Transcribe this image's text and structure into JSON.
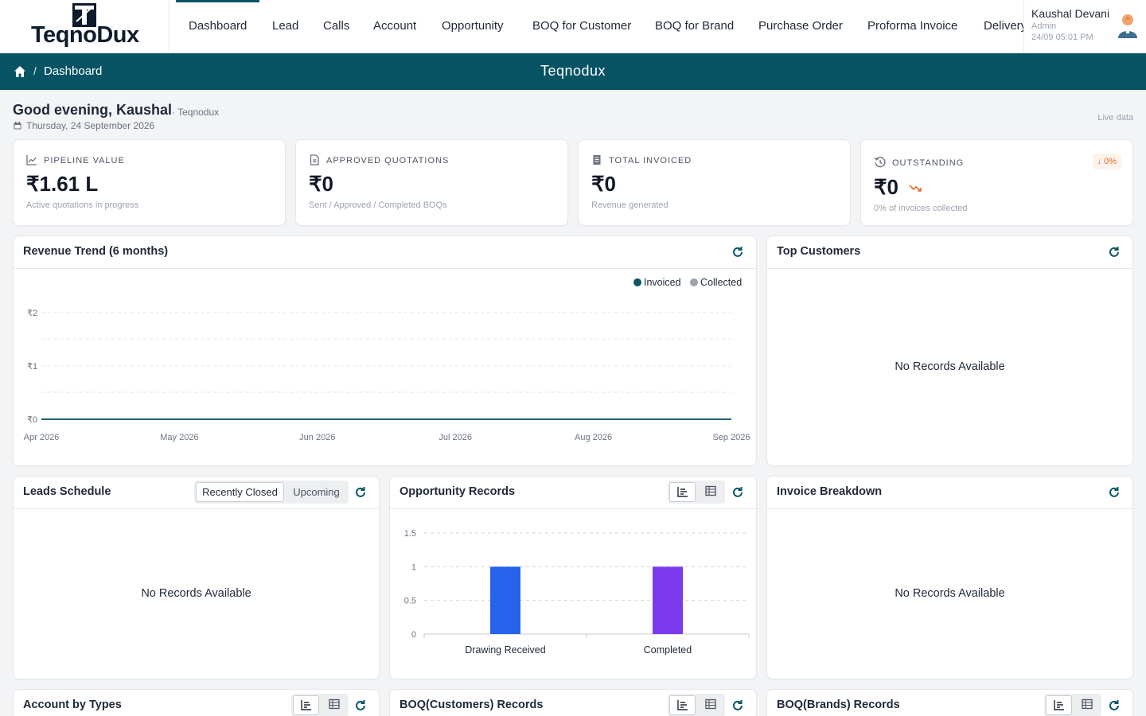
{
  "app": {
    "logo_text": "TeqnoDux",
    "nav": [
      "Dashboard",
      "Lead",
      "Calls",
      "Account",
      "Opportunity",
      "BOQ for Customer",
      "BOQ for Brand",
      "Purchase Order",
      "Proforma Invoice",
      "Delivery"
    ],
    "active_nav": "Dashboard",
    "user": {
      "name": "Kaushal Devani",
      "role": "Admin",
      "time": "24/09 05:01 PM"
    }
  },
  "band": {
    "breadcrumb": "Dashboard",
    "separator": "/",
    "title": "Teqnodux"
  },
  "greeting": {
    "text": "Good evening, Kaushal",
    "org": "· Teqnodux",
    "date": "Thursday, 24 September 2026",
    "live": "Live data"
  },
  "kpis": [
    {
      "label": "PIPELINE VALUE",
      "value": "₹1.61 L",
      "sub": "Active quotations in progress",
      "icon": "trend-line-icon"
    },
    {
      "label": "APPROVED QUOTATIONS",
      "value": "₹0",
      "sub": "Sent / Approved / Completed BOQs",
      "icon": "document-icon"
    },
    {
      "label": "TOTAL INVOICED",
      "value": "₹0",
      "sub": "Revenue generated",
      "icon": "invoice-icon"
    },
    {
      "label": "OUTSTANDING",
      "value": "₹0",
      "sub": "0% of invoices collected",
      "icon": "history-icon",
      "badge": "↓ 0%"
    }
  ],
  "panels": {
    "revenue": {
      "title": "Revenue Trend (6 months)"
    },
    "top_customers": {
      "title": "Top Customers",
      "empty": "No Records Available"
    },
    "leads": {
      "title": "Leads Schedule",
      "tab_recent": "Recently Closed",
      "tab_upcoming": "Upcoming",
      "empty": "No Records Available"
    },
    "opportunity": {
      "title": "Opportunity Records"
    },
    "invoice": {
      "title": "Invoice Breakdown",
      "empty": "No Records Available"
    },
    "account_types": {
      "title": "Account by Types"
    },
    "boq_customers": {
      "title": "BOQ(Customers) Records"
    },
    "boq_brands": {
      "title": "BOQ(Brands) Records"
    }
  },
  "colors": {
    "brand": "#075364",
    "invoiced": "#0b5566",
    "collected": "#9ca3af",
    "bar1": "#2563eb",
    "bar2": "#7c3aed",
    "badge": "#e36a2b"
  },
  "chart_data": [
    {
      "type": "line",
      "title": "Revenue Trend (6 months)",
      "categories": [
        "Apr 2026",
        "May 2026",
        "Jun 2026",
        "Jul 2026",
        "Aug 2026",
        "Sep 2026"
      ],
      "series": [
        {
          "name": "Invoiced",
          "values": [
            0,
            0,
            0,
            0,
            0,
            0
          ]
        },
        {
          "name": "Collected",
          "values": [
            0,
            0,
            0,
            0,
            0,
            0
          ]
        }
      ],
      "yticks": [
        "₹0",
        "₹1",
        "₹2"
      ],
      "ylim": [
        0,
        2
      ],
      "grid": true,
      "legend": "top-right"
    },
    {
      "type": "bar",
      "title": "Opportunity Records",
      "categories": [
        "Drawing Received",
        "Completed"
      ],
      "values": [
        1,
        1
      ],
      "yticks": [
        "0",
        "0.5",
        "1",
        "1.5"
      ],
      "ylim": [
        0,
        1.5
      ],
      "grid": true
    }
  ]
}
